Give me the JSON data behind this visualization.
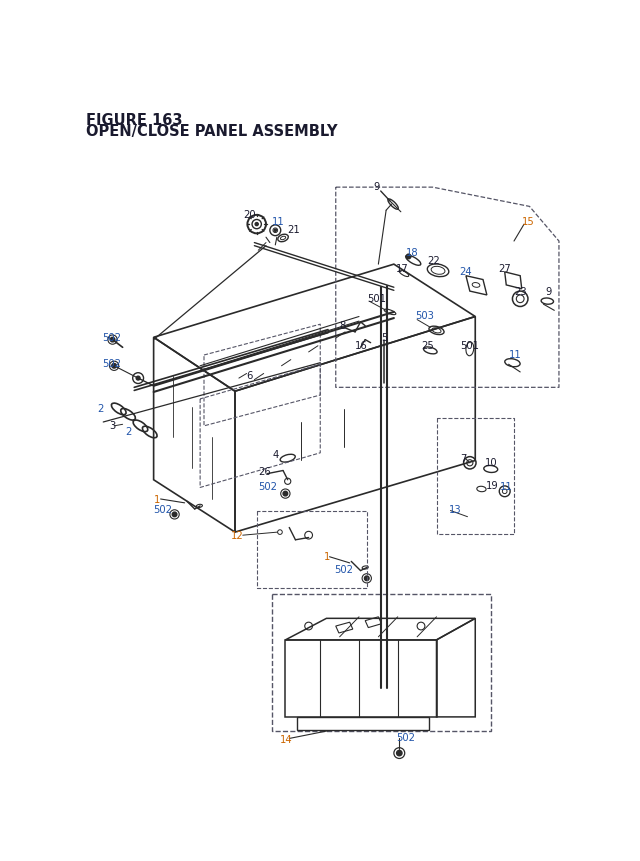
{
  "title_line1": "FIGURE 163",
  "title_line2": "OPEN/CLOSE PANEL ASSEMBLY",
  "bg_color": "#ffffff",
  "line_color": "#2a2a2a",
  "label_black": "#1a1a2e",
  "label_blue": "#2255aa",
  "label_orange": "#cc6600",
  "dash_color": "#555566",
  "title_fontsize": 10.5,
  "label_fs": 7.2
}
